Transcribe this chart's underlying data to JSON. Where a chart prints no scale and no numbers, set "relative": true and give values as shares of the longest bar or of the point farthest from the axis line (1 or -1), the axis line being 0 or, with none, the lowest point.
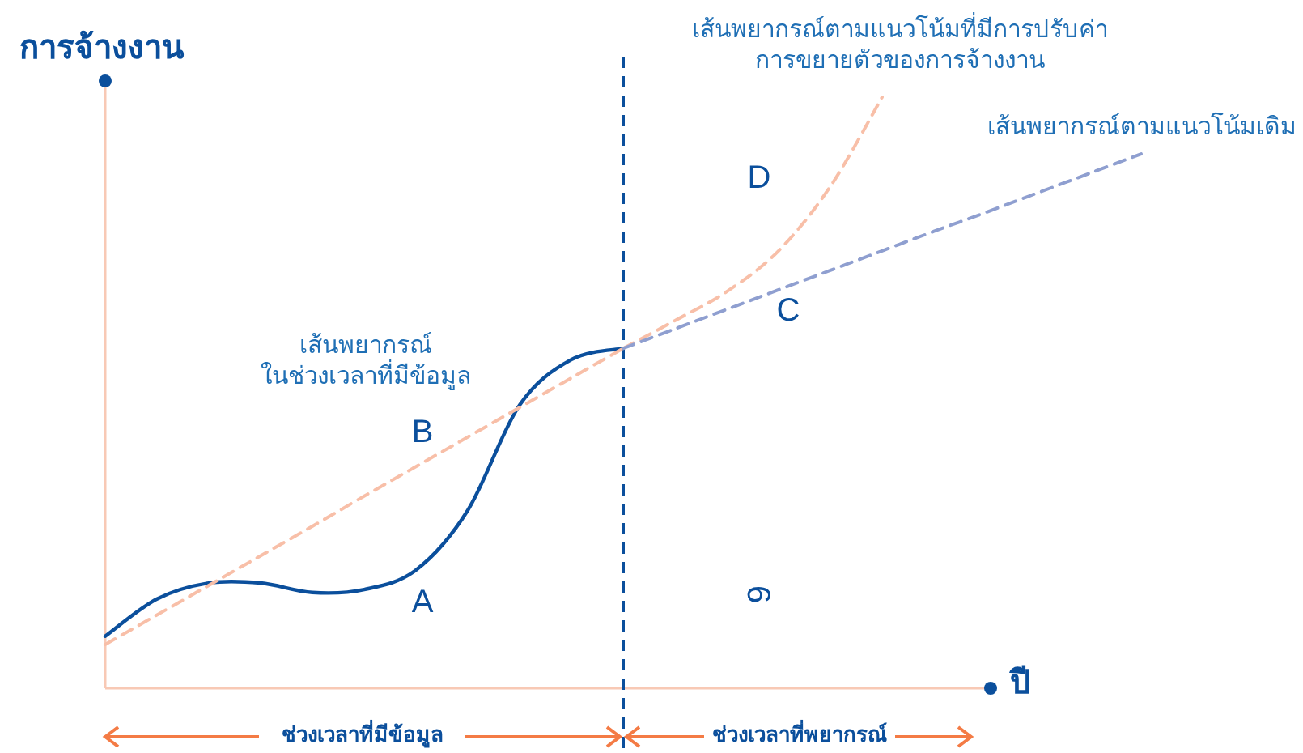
{
  "chart_data": {
    "type": "line",
    "relative": true,
    "xlabel": "ปี",
    "ylabel": "การจ้างงาน",
    "categories": [
      null,
      null,
      null,
      null,
      null,
      null,
      null,
      null,
      null,
      null,
      null,
      null,
      null,
      null,
      null,
      null,
      null,
      null,
      null,
      null,
      null
    ],
    "series": [
      {
        "color": "#0b4f9c",
        "line_style": "solid",
        "values": [
          0.088,
          0.151,
          0.178,
          0.178,
          0.162,
          0.167,
          0.2,
          0.301,
          0.479,
          0.556,
          0.575,
          null,
          null,
          null,
          null,
          null,
          null,
          null,
          null,
          null,
          null
        ]
      },
      {
        "name": "เส้นพยากรณ์\nในช่วงเวลาที่มีข้อมูล",
        "color": "#f8bfa8",
        "line_style": "dashed",
        "values": [
          0.074,
          0.124,
          0.174,
          0.224,
          0.274,
          0.325,
          0.375,
          0.425,
          0.475,
          0.525,
          0.575,
          null,
          null,
          null,
          null,
          null,
          null,
          null,
          null,
          null,
          null
        ]
      },
      {
        "name": "เส้นพยากรณ์ตามแนวโน้มที่มีการปรับค่า\nการขยายตัวของการจ้างงาน",
        "color": "#f8bfa8",
        "line_style": "dashed",
        "values": [
          null,
          null,
          null,
          null,
          null,
          null,
          null,
          null,
          null,
          null,
          0.575,
          0.622,
          0.671,
          0.74,
          0.849,
          1.0,
          null,
          null,
          null,
          null,
          null
        ]
      },
      {
        "name": "เส้นพยากรณ์ตามแนวโน้มเดิม",
        "color": "#8f9fd0",
        "line_style": "dashed",
        "values": [
          null,
          null,
          null,
          null,
          null,
          null,
          null,
          null,
          null,
          null,
          0.575,
          0.608,
          0.641,
          0.674,
          0.707,
          0.74,
          0.773,
          0.805,
          0.838,
          0.871,
          0.904
        ]
      }
    ],
    "annotations": [
      "A",
      "B",
      "C",
      "D",
      "6",
      "ช่วงเวลาที่มีข้อมูล",
      "ช่วงเวลาที่พยากรณ์"
    ]
  }
}
